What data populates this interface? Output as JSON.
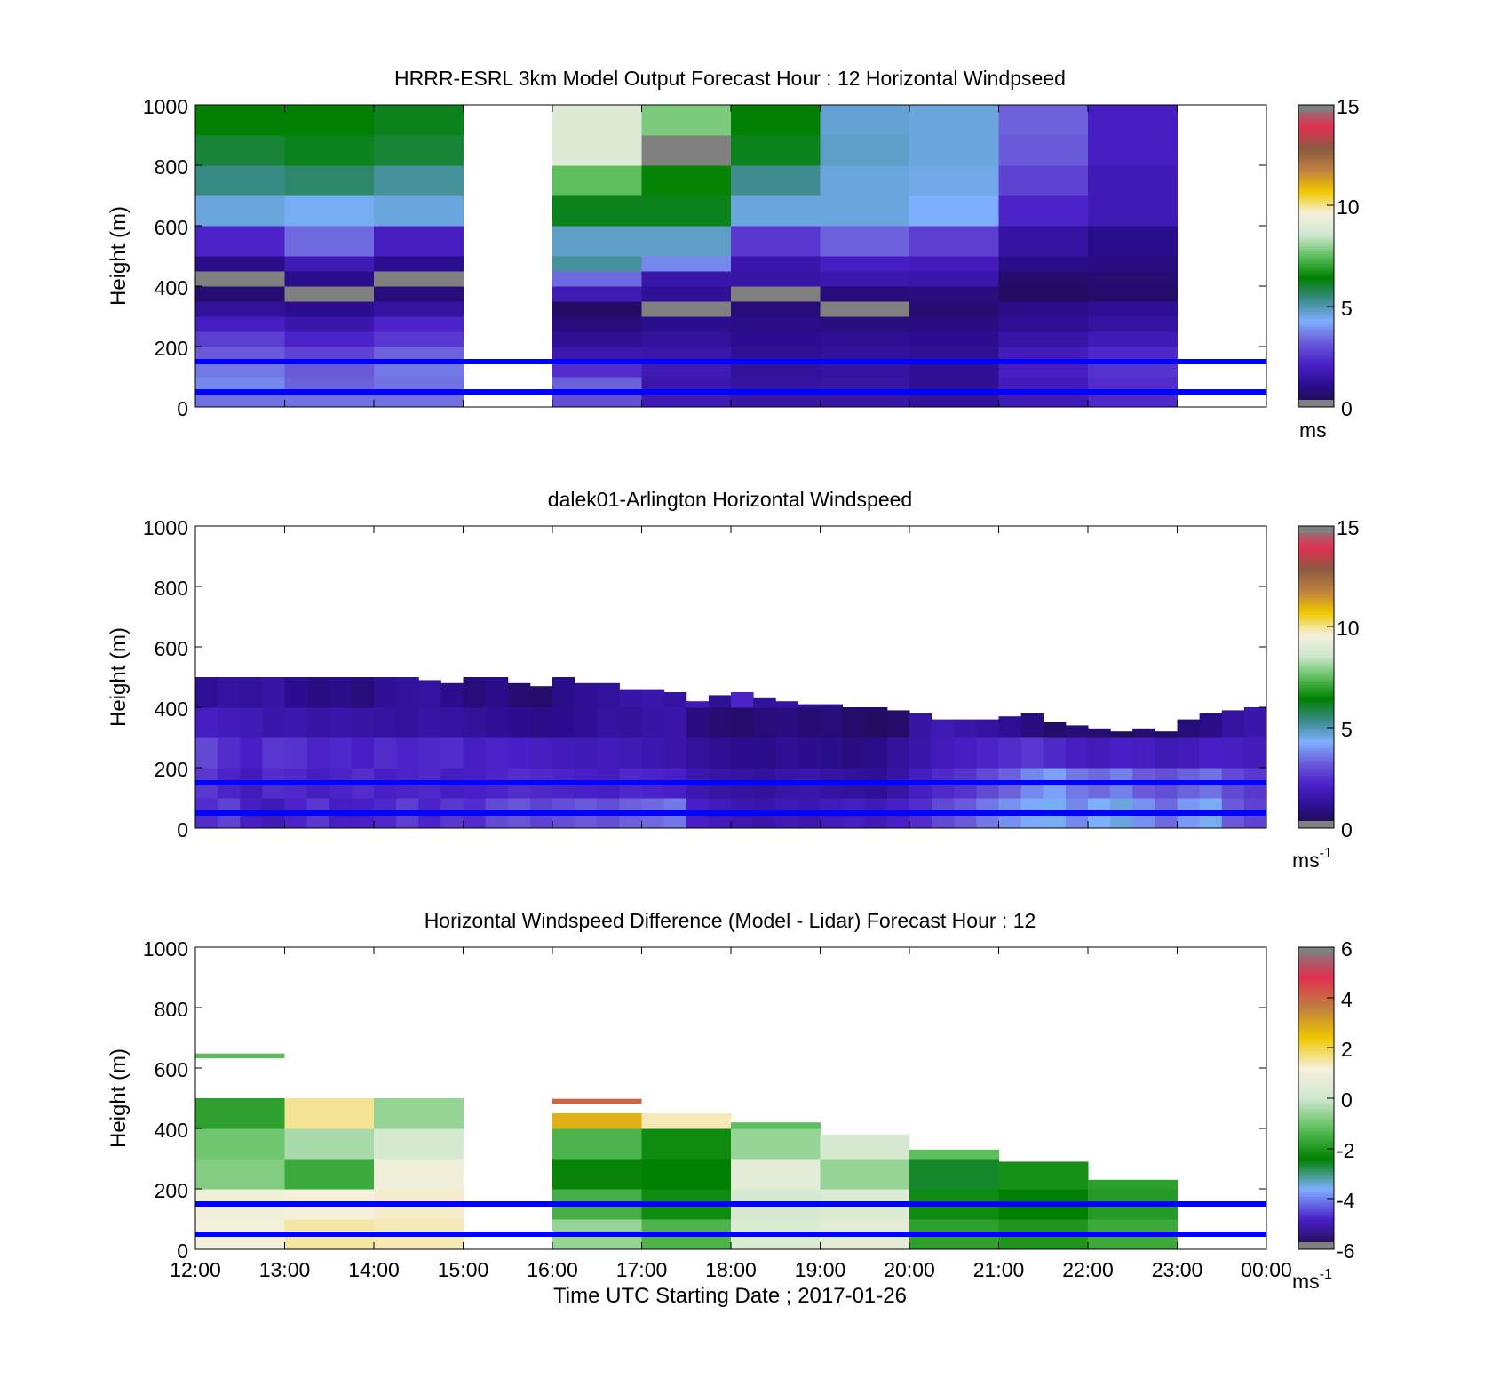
{
  "figure": {
    "xlabel": "Time UTC  Starting Date ; 2017-01-26",
    "x_ticks": [
      "12:00",
      "13:00",
      "14:00",
      "15:00",
      "16:00",
      "17:00",
      "18:00",
      "19:00",
      "20:00",
      "21:00",
      "22:00",
      "23:00",
      "00:00"
    ],
    "colors": {
      "reference_lines": "#0000ff",
      "speed_colormap": [
        "#1c0b3c",
        "#2a0e8e",
        "#4a1fc8",
        "#6a5ad8",
        "#7fb0ff",
        "#3a8a8a",
        "#008000",
        "#5cbf5c",
        "#cfe8cf",
        "#f5f0dc",
        "#f0c800",
        "#c08040",
        "#8a5a40",
        "#e03050",
        "#808080"
      ],
      "diff_colormap": [
        "#1c0b3c",
        "#4a1fc8",
        "#7fb0ff",
        "#008000",
        "#5cbf5c",
        "#cfe8cf",
        "#f5f0dc",
        "#f0c800",
        "#c08040",
        "#e03050",
        "#808080"
      ]
    }
  },
  "chart_data": [
    {
      "type": "heatmap",
      "title": "HRRR-ESRL 3km Model Output   Forecast Hour : 12 Horizontal Windpseed",
      "ylabel": "Height (m)",
      "ylim": [
        0,
        1000
      ],
      "y_ticks": [
        "0",
        "200",
        "400",
        "600",
        "800",
        "1000"
      ],
      "x_range_hours": [
        12,
        24
      ],
      "reference_lines_m": [
        50,
        150
      ],
      "colorbar": {
        "ticks": [
          "0",
          "5",
          "10",
          "15"
        ],
        "range": [
          0,
          15
        ],
        "unit": "ms",
        "unit_superscript": ""
      },
      "heights_m": [
        25,
        75,
        125,
        175,
        225,
        275,
        325,
        375,
        425,
        475,
        525,
        575,
        625,
        675,
        725,
        775,
        825,
        875,
        925,
        975
      ],
      "x_hours": [
        12.5,
        13.5,
        14.5,
        15.5,
        16.5,
        17.5,
        18.5,
        19.5,
        20.5,
        21.5,
        22.5,
        23.5
      ],
      "values_ms": [
        [
          3.5,
          3.5,
          3.5,
          null,
          3.0,
          1.8,
          1.5,
          1.5,
          1.3,
          1.8,
          2.3,
          null
        ],
        [
          3.8,
          3.3,
          3.5,
          null,
          3.3,
          1.6,
          1.4,
          1.5,
          1.2,
          1.9,
          2.4,
          null
        ],
        [
          3.6,
          3.2,
          3.6,
          null,
          2.4,
          1.8,
          1.3,
          1.4,
          1.2,
          2.0,
          2.5,
          null
        ],
        [
          3.2,
          2.8,
          3.3,
          null,
          1.7,
          1.6,
          1.2,
          1.3,
          1.2,
          1.9,
          2.3,
          null
        ],
        [
          2.7,
          2.2,
          2.6,
          null,
          1.2,
          1.3,
          1.1,
          1.2,
          1.1,
          1.5,
          1.8,
          null
        ],
        [
          2.0,
          1.6,
          2.2,
          null,
          0.8,
          1.1,
          1.0,
          0.9,
          0.9,
          1.2,
          1.4,
          null
        ],
        [
          1.3,
          1.1,
          1.4,
          null,
          0.5,
          15.0,
          0.8,
          15.0,
          0.7,
          1.0,
          1.2,
          null
        ],
        [
          0.7,
          15.0,
          0.8,
          null,
          1.8,
          1.2,
          15.0,
          0.8,
          0.9,
          0.5,
          0.6,
          null
        ],
        [
          15.0,
          1.0,
          15.0,
          null,
          3.4,
          1.6,
          1.5,
          1.7,
          1.6,
          0.6,
          0.7,
          null
        ],
        [
          1.0,
          1.8,
          1.1,
          null,
          5.2,
          3.8,
          1.6,
          2.0,
          1.9,
          1.0,
          0.9,
          null
        ],
        [
          2.2,
          3.4,
          2.0,
          null,
          4.8,
          4.8,
          2.6,
          3.3,
          2.7,
          1.4,
          1.0,
          null
        ],
        [
          2.2,
          3.4,
          2.0,
          null,
          4.8,
          4.8,
          2.6,
          3.3,
          2.7,
          1.4,
          1.0,
          null
        ],
        [
          4.6,
          4.4,
          4.6,
          null,
          6.2,
          6.2,
          4.6,
          4.6,
          4.3,
          2.2,
          1.8,
          null
        ],
        [
          4.6,
          4.4,
          4.6,
          null,
          6.2,
          6.2,
          4.6,
          4.6,
          4.3,
          2.2,
          1.8,
          null
        ],
        [
          5.4,
          5.6,
          5.2,
          null,
          7.5,
          6.5,
          5.3,
          4.6,
          4.5,
          2.8,
          1.8,
          null
        ],
        [
          5.4,
          5.6,
          5.2,
          null,
          7.5,
          6.5,
          5.3,
          4.6,
          4.5,
          2.8,
          1.8,
          null
        ],
        [
          6.0,
          6.2,
          6.0,
          null,
          9.0,
          15.0,
          6.2,
          4.8,
          4.6,
          3.2,
          2.0,
          null
        ],
        [
          6.0,
          6.2,
          6.0,
          null,
          9.0,
          15.0,
          6.2,
          4.8,
          4.6,
          3.2,
          2.0,
          null
        ],
        [
          6.4,
          6.4,
          6.2,
          null,
          9.0,
          7.8,
          6.4,
          4.7,
          4.6,
          3.3,
          2.0,
          null
        ],
        [
          6.4,
          6.4,
          6.2,
          null,
          9.0,
          7.8,
          6.4,
          4.7,
          4.6,
          3.3,
          2.0,
          null
        ]
      ]
    },
    {
      "type": "heatmap",
      "title": "dalek01-Arlington  Horizontal Windspeed",
      "ylabel": "Height (m)",
      "ylim": [
        0,
        1000
      ],
      "y_ticks": [
        "0",
        "200",
        "400",
        "600",
        "800",
        "1000"
      ],
      "x_range_hours": [
        12,
        24
      ],
      "reference_lines_m": [
        50,
        150
      ],
      "colorbar": {
        "ticks": [
          "0",
          "5",
          "10",
          "15"
        ],
        "range": [
          0,
          15
        ],
        "unit": "ms",
        "unit_superscript": "-1"
      },
      "heights_m": [
        50,
        150,
        250,
        350,
        450
      ],
      "x_hours": [
        12.125,
        12.375,
        12.625,
        12.875,
        13.125,
        13.375,
        13.625,
        13.875,
        14.125,
        14.375,
        14.625,
        14.875,
        15.125,
        15.375,
        15.625,
        15.875,
        16.125,
        16.375,
        16.625,
        16.875,
        17.125,
        17.375,
        17.625,
        17.875,
        18.125,
        18.375,
        18.625,
        18.875,
        19.125,
        19.375,
        19.625,
        19.875,
        20.125,
        20.375,
        20.625,
        20.875,
        21.125,
        21.375,
        21.625,
        21.875,
        22.125,
        22.375,
        22.625,
        22.875,
        23.125,
        23.375,
        23.625,
        23.875
      ],
      "profile_top_m": [
        505,
        510,
        530,
        545,
        530,
        560,
        545,
        530,
        520,
        500,
        490,
        480,
        500,
        500,
        480,
        470,
        500,
        480,
        480,
        460,
        460,
        450,
        420,
        440,
        450,
        430,
        420,
        410,
        410,
        400,
        400,
        390,
        380,
        360,
        360,
        360,
        370,
        380,
        350,
        340,
        330,
        320,
        330,
        320,
        360,
        380,
        390,
        400
      ],
      "values_ms": [
        [
          2.4,
          2.8,
          2.0,
          1.8,
          2.2,
          2.6,
          2.0,
          2.1,
          2.3,
          2.7,
          2.2,
          2.6,
          2.4,
          2.9,
          3.1,
          2.8,
          3.0,
          3.2,
          3.0,
          3.3,
          3.4,
          3.6,
          2.1,
          1.9,
          1.7,
          1.6,
          1.8,
          1.7,
          1.9,
          2.0,
          1.8,
          2.1,
          2.4,
          2.9,
          3.2,
          3.6,
          3.9,
          4.2,
          4.4,
          3.8,
          4.3,
          4.6,
          3.9,
          3.4,
          4.0,
          4.4,
          3.2,
          2.8
        ],
        [
          2.6,
          2.2,
          1.9,
          2.4,
          2.3,
          2.0,
          2.2,
          2.4,
          2.1,
          2.2,
          2.3,
          2.0,
          2.1,
          2.2,
          2.4,
          2.3,
          2.2,
          2.1,
          2.0,
          2.3,
          2.2,
          2.1,
          1.7,
          1.5,
          1.4,
          1.3,
          1.5,
          1.6,
          1.4,
          1.3,
          1.2,
          1.5,
          2.0,
          2.3,
          2.5,
          2.9,
          3.3,
          3.8,
          4.1,
          3.6,
          3.4,
          3.7,
          3.2,
          3.0,
          3.3,
          3.5,
          2.9,
          2.6
        ],
        [
          2.9,
          2.4,
          2.1,
          2.6,
          2.5,
          2.2,
          2.3,
          2.1,
          2.4,
          2.2,
          2.3,
          2.4,
          2.0,
          2.2,
          2.1,
          2.0,
          1.9,
          1.8,
          1.9,
          1.8,
          1.7,
          1.6,
          1.3,
          1.2,
          1.1,
          1.0,
          1.2,
          1.1,
          1.0,
          0.9,
          1.0,
          1.3,
          1.6,
          1.9,
          2.0,
          2.2,
          2.4,
          2.6,
          2.3,
          2.0,
          1.9,
          2.1,
          2.0,
          1.8,
          1.9,
          2.1,
          2.0,
          1.9
        ],
        [
          2.0,
          1.9,
          1.8,
          1.6,
          1.7,
          1.5,
          1.6,
          1.5,
          1.4,
          1.3,
          1.5,
          1.4,
          1.3,
          1.2,
          1.1,
          1.0,
          1.1,
          1.2,
          1.4,
          1.3,
          1.5,
          1.6,
          0.9,
          0.7,
          0.6,
          0.8,
          0.9,
          0.7,
          0.8,
          0.6,
          0.5,
          0.6,
          1.5,
          1.8,
          1.6,
          1.4,
          1.2,
          0.9,
          0.6,
          0.8,
          0.7,
          0.5,
          0.7,
          0.6,
          0.8,
          1.0,
          1.4,
          1.6
        ],
        [
          1.2,
          1.4,
          1.3,
          1.5,
          1.1,
          0.9,
          1.0,
          0.8,
          1.2,
          1.3,
          1.4,
          1.1,
          0.8,
          1.0,
          0.7,
          0.6,
          1.0,
          1.2,
          1.3,
          1.5,
          1.6,
          1.4,
          1.8,
          1.2,
          2.2,
          1.3,
          1.4,
          1.2,
          1.0,
          0.9,
          0.8,
          null,
          null,
          null,
          null,
          null,
          null,
          null,
          null,
          null,
          null,
          null,
          null,
          null,
          null,
          null,
          null,
          null
        ]
      ]
    },
    {
      "type": "heatmap",
      "title": "Horizontal Windspeed Difference (Model - Lidar) Forecast Hour : 12",
      "ylabel": "Height (m)",
      "ylim": [
        0,
        1000
      ],
      "y_ticks": [
        "0",
        "200",
        "400",
        "600",
        "800",
        "1000"
      ],
      "x_range_hours": [
        12,
        24
      ],
      "reference_lines_m": [
        50,
        150
      ],
      "colorbar": {
        "ticks": [
          "-6",
          "-4",
          "-2",
          "0",
          "2",
          "4",
          "6"
        ],
        "range": [
          -6,
          6
        ],
        "unit": "ms",
        "unit_superscript": "-1"
      },
      "x_hours": [
        12.5,
        13.5,
        14.5,
        15.5,
        16.5,
        17.5,
        18.5,
        19.5,
        20.5,
        21.5,
        22.5,
        23.5
      ],
      "column_top_m": [
        500,
        500,
        500,
        null,
        450,
        450,
        420,
        380,
        330,
        290,
        230,
        null
      ],
      "values_by_height": [
        {
          "height_m": 50,
          "values": [
            1.2,
            1.5,
            1.4,
            null,
            -0.6,
            -1.4,
            0.4,
            0.6,
            -1.8,
            -2.0,
            -1.6,
            null
          ]
        },
        {
          "height_m": 150,
          "values": [
            1.0,
            1.2,
            1.3,
            null,
            -1.5,
            -2.2,
            0.2,
            0.4,
            -2.2,
            -2.4,
            -1.9,
            null
          ]
        },
        {
          "height_m": 250,
          "values": [
            -0.8,
            -1.6,
            1.0,
            null,
            -2.3,
            -2.4,
            0.6,
            -0.6,
            -2.6,
            -2.1,
            -1.8,
            null
          ]
        },
        {
          "height_m": 350,
          "values": [
            -1.0,
            -0.4,
            0.2,
            null,
            -1.4,
            -2.2,
            -0.6,
            0.2,
            -1.2,
            -1.8,
            null,
            null
          ]
        },
        {
          "height_m": 450,
          "values": [
            -1.8,
            1.6,
            -0.6,
            null,
            2.8,
            1.4,
            -1.2,
            1.0,
            null,
            null,
            null,
            null
          ]
        }
      ],
      "isolated_segments": [
        {
          "hours": [
            12,
            13
          ],
          "height_m": 640,
          "value": -1.2
        },
        {
          "hours": [
            16,
            17
          ],
          "height_m": 490,
          "value": 4.0
        }
      ]
    }
  ]
}
